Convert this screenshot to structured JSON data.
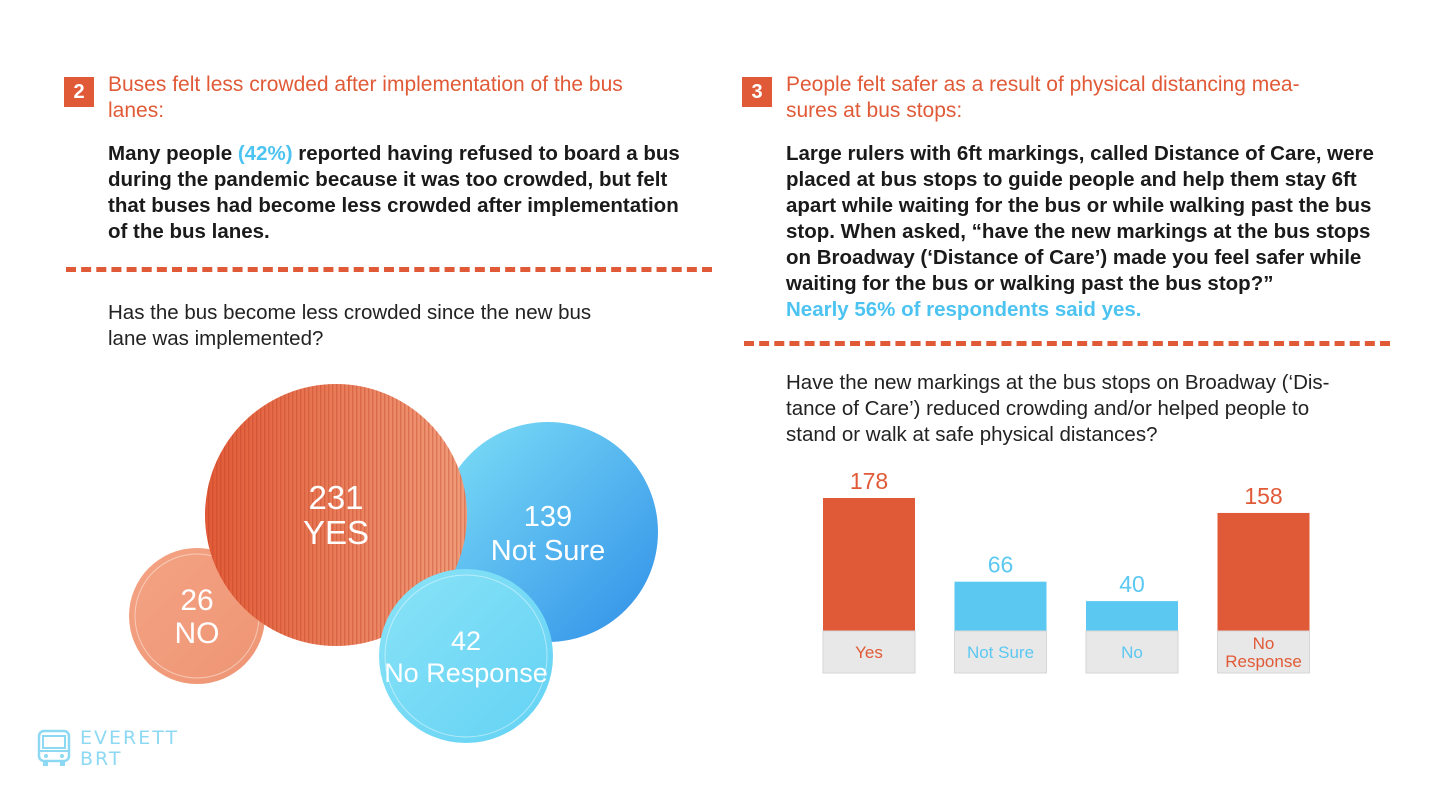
{
  "section2": {
    "number": "2",
    "heading_line1": "Buses felt less crowded after implementation of the bus",
    "heading_line2": "lanes:",
    "body_l1a": "Many people ",
    "body_l1_hl": "(42%)",
    "body_l1b": " reported having refused to board a bus",
    "body_l2": "during the pandemic because it was too crowded, but felt",
    "body_l3": "that buses had become less crowded after implementation",
    "body_l4": "of the bus lanes.",
    "question_l1": "Has the bus become less crowded since the new bus",
    "question_l2": "lane was implemented?"
  },
  "section3": {
    "number": "3",
    "heading_line1": "People felt safer as a result of physical distancing mea-",
    "heading_line2": "sures at bus stops:",
    "body_l1": "Large rulers with 6ft markings, called Distance of Care, were",
    "body_l2": "placed at bus stops to guide people and help them stay 6ft",
    "body_l3": "apart while waiting for the bus or while walking past the bus",
    "body_l4": "stop. When asked, “have the new markings at the bus stops",
    "body_l5": "on Broadway (‘Distance of Care’) made you feel safer while",
    "body_l6": "waiting for the bus or walking past the bus stop?”",
    "body_hl": "Nearly 56% of respondents said yes.",
    "question_l1": "Have the new markings at the bus stops on Broadway (‘Dis-",
    "question_l2": "tance of Care’) reduced crowding and/or helped people to",
    "question_l3": "stand or walk at safe physical distances?"
  },
  "logo": {
    "line1": "EVERETT",
    "line2": "BRT",
    "icon": "bus-icon"
  },
  "colors": {
    "accent": "#e15a37",
    "blue": "#5bc8f2",
    "label_bg": "#e8e8e8"
  },
  "chart_data": [
    {
      "type": "bubble",
      "items": [
        {
          "value": 231,
          "label": "YES"
        },
        {
          "value": 139,
          "label": "Not Sure"
        },
        {
          "value": 42,
          "label": "No Response"
        },
        {
          "value": 26,
          "label": "NO"
        }
      ]
    },
    {
      "type": "bar",
      "categories": [
        "Yes",
        "Not Sure",
        "No",
        "No Response"
      ],
      "values": [
        178,
        66,
        40,
        158
      ],
      "colors": [
        "#e15a37",
        "#5bc8f2",
        "#5bc8f2",
        "#e15a37"
      ],
      "ylim": [
        0,
        178
      ]
    }
  ]
}
